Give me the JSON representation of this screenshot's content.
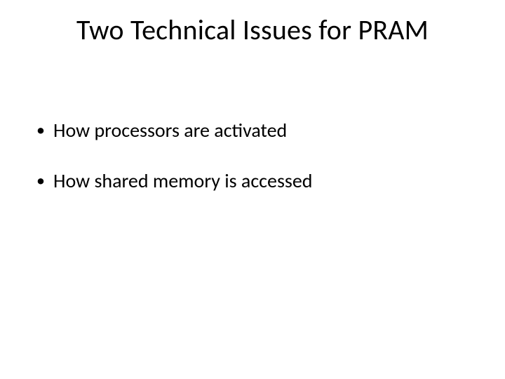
{
  "slide": {
    "title": "Two Technical Issues for PRAM",
    "title_fontsize": 40,
    "body_fontsize": 28,
    "text_color": "#000000",
    "background_color": "#ffffff",
    "bullets": [
      "How processors are activated",
      "How shared memory is accessed"
    ]
  }
}
